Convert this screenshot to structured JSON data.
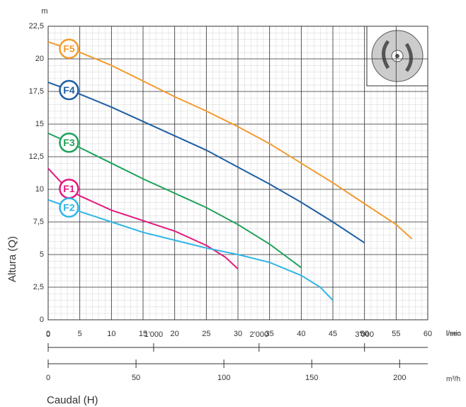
{
  "chart_data": {
    "type": "line",
    "y_unit": "m",
    "y_label": "Altura (Q)",
    "x_label": "Caudal (H)",
    "x_unit": "l/sec",
    "xlim": [
      0,
      60
    ],
    "xticks": [
      0,
      5,
      10,
      15,
      20,
      25,
      30,
      35,
      40,
      45,
      50,
      55,
      60
    ],
    "ylim": [
      0,
      22.5
    ],
    "yticks": [
      0,
      {
        "value": 2.5,
        "label": "2,5"
      },
      5,
      {
        "value": 7.5,
        "label": "7,5"
      },
      10,
      {
        "value": 12.5,
        "label": "12,5"
      },
      15,
      {
        "value": 17.5,
        "label": "17,5"
      },
      20,
      {
        "value": 22.5,
        "label": "22,5"
      }
    ],
    "grid": true,
    "x2_axes": [
      {
        "unit": "l/min",
        "lim": [
          0,
          3600
        ],
        "ticks": [
          0,
          {
            "value": 1000,
            "label": "1'000"
          },
          {
            "value": 2000,
            "label": "2'000"
          },
          {
            "value": 3000,
            "label": "3'000"
          }
        ]
      },
      {
        "unit": "m³/h",
        "lim": [
          0,
          216
        ],
        "ticks": [
          0,
          50,
          100,
          150,
          200
        ]
      }
    ],
    "series": [
      {
        "name": "F5",
        "color": "#f39b2f",
        "x": [
          0,
          5,
          10,
          15,
          20,
          25,
          30,
          35,
          40,
          45,
          50,
          55,
          57.5
        ],
        "values": [
          21.3,
          20.5,
          19.5,
          18.3,
          17.1,
          16,
          14.8,
          13.5,
          12,
          10.5,
          8.9,
          7.3,
          6.2
        ]
      },
      {
        "name": "F4",
        "color": "#1f5fa3",
        "x": [
          0,
          5,
          10,
          15,
          20,
          25,
          30,
          35,
          40,
          45,
          50
        ],
        "values": [
          18.2,
          17.3,
          16.3,
          15.2,
          14.1,
          13,
          11.7,
          10.4,
          9,
          7.5,
          5.9
        ]
      },
      {
        "name": "F3",
        "color": "#1fa15a",
        "x": [
          0,
          5,
          10,
          15,
          20,
          25,
          30,
          35,
          40
        ],
        "values": [
          14.3,
          13.2,
          12,
          10.8,
          9.7,
          8.6,
          7.3,
          5.8,
          4
        ]
      },
      {
        "name": "F1",
        "color": "#e2197f",
        "x": [
          0,
          2.5,
          5,
          10,
          15,
          20,
          25,
          28,
          30
        ],
        "values": [
          11.6,
          10.3,
          9.5,
          8.4,
          7.6,
          6.8,
          5.7,
          4.8,
          3.9
        ]
      },
      {
        "name": "F2",
        "color": "#2fb5e6",
        "x": [
          0,
          5,
          10,
          15,
          20,
          25,
          30,
          35,
          40,
          43,
          45
        ],
        "values": [
          9.2,
          8.3,
          7.5,
          6.7,
          6.1,
          5.5,
          5,
          4.4,
          3.4,
          2.5,
          1.5
        ]
      }
    ]
  }
}
